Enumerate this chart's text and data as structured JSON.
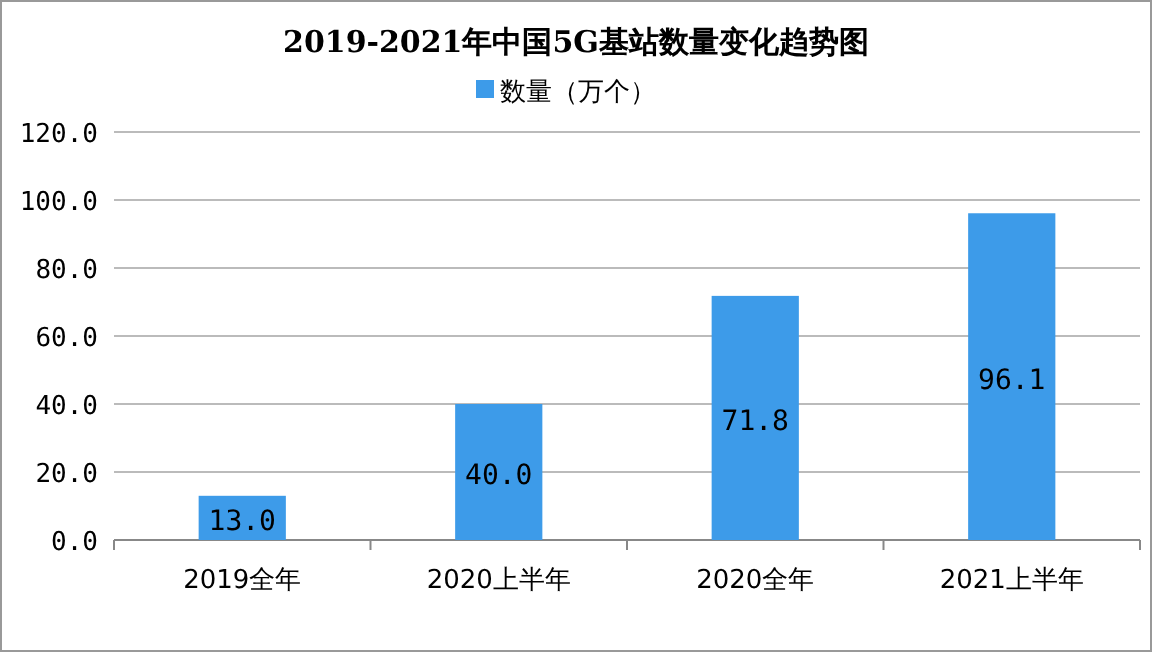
{
  "chart_data": {
    "type": "bar",
    "title": "2019-2021年中国5G基站数量变化趋势图",
    "categories": [
      "2019全年",
      "2020上半年",
      "2020全年",
      "2021上半年"
    ],
    "series": [
      {
        "name": "数量（万个）",
        "color": "#3d9be9",
        "values": [
          13.0,
          40.0,
          71.8,
          96.1
        ],
        "value_labels": [
          "13.0",
          "40.0",
          "71.8",
          "96.1"
        ]
      }
    ],
    "ylim": [
      0,
      120
    ],
    "yticks": [
      {
        "value": 0,
        "label": "0.0"
      },
      {
        "value": 20,
        "label": "20.0"
      },
      {
        "value": 40,
        "label": "40.0"
      },
      {
        "value": 60,
        "label": "60.0"
      },
      {
        "value": 80,
        "label": "80.0"
      },
      {
        "value": 100,
        "label": "100.0"
      },
      {
        "value": 120,
        "label": "120.0"
      }
    ],
    "grid": "y",
    "legend": "top"
  }
}
